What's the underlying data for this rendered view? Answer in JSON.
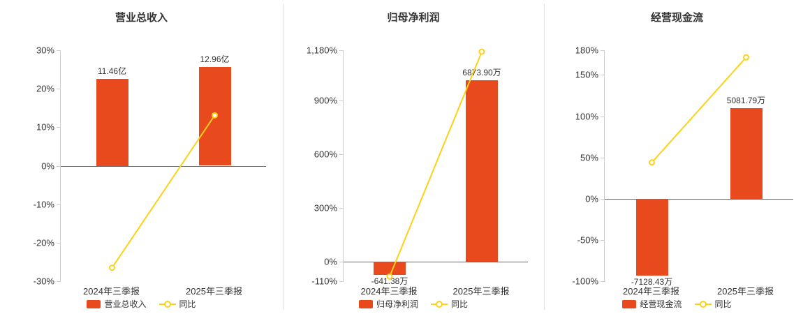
{
  "accent": {
    "bar_color": "#e8491d",
    "line_color": "#fdd118",
    "axis_line_color": "#cccccc",
    "zero_line_color": "#666666",
    "text_color": "#333333",
    "divider_color": "#e0e0e0",
    "background": "#ffffff"
  },
  "chart_data": [
    {
      "type": "bar",
      "title": "营业总收入",
      "categories": [
        "2024年三季报",
        "2025年三季报"
      ],
      "bar_series": {
        "name": "营业总收入",
        "values": [
          11.46,
          12.96
        ],
        "unit": "亿",
        "labels": [
          "11.46亿",
          "12.96亿"
        ],
        "render_values_on_pct_axis": [
          22.5,
          25.6
        ]
      },
      "line_series": {
        "name": "同比",
        "values_pct": [
          -26.5,
          13.1
        ]
      },
      "y_axis": {
        "min": -30,
        "max": 30,
        "ticks": [
          30,
          20,
          10,
          0,
          -10,
          -20,
          -30
        ],
        "tick_labels": [
          "30%",
          "20%",
          "10%",
          "0%",
          "-10%",
          "-20%",
          "-30%"
        ]
      },
      "legend": [
        "营业总收入",
        "同比"
      ]
    },
    {
      "type": "bar",
      "title": "归母净利润",
      "categories": [
        "2024年三季报",
        "2025年三季报"
      ],
      "bar_series": {
        "name": "归母净利润",
        "values": [
          -641.38,
          6873.9
        ],
        "unit": "万",
        "labels": [
          "-641.38万",
          "6873.90万"
        ],
        "render_values_on_pct_axis": [
          -75,
          1013
        ]
      },
      "line_series": {
        "name": "同比",
        "values_pct": [
          -84,
          1171.75
        ]
      },
      "y_axis": {
        "min": -110,
        "max": 1180,
        "ticks": [
          1180,
          900,
          600,
          300,
          0,
          -110
        ],
        "tick_labels": [
          "1,180%",
          "900%",
          "600%",
          "300%",
          "0%",
          "-110%"
        ]
      },
      "legend": [
        "归母净利润",
        "同比"
      ]
    },
    {
      "type": "bar",
      "title": "经营现金流",
      "categories": [
        "2024年三季报",
        "2025年三季报"
      ],
      "bar_series": {
        "name": "经营现金流",
        "values": [
          -7128.43,
          5081.79
        ],
        "unit": "万",
        "labels": [
          "-7128.43万",
          "5081.79万"
        ],
        "render_values_on_pct_axis": [
          -93,
          110
        ]
      },
      "line_series": {
        "name": "同比",
        "values_pct": [
          44,
          171.3
        ]
      },
      "y_axis": {
        "min": -100,
        "max": 180,
        "ticks": [
          180,
          150,
          100,
          50,
          0,
          -50,
          -100
        ],
        "tick_labels": [
          "180%",
          "150%",
          "100%",
          "50%",
          "0%",
          "-50%",
          "-100%"
        ]
      },
      "legend": [
        "经营现金流",
        "同比"
      ]
    }
  ]
}
